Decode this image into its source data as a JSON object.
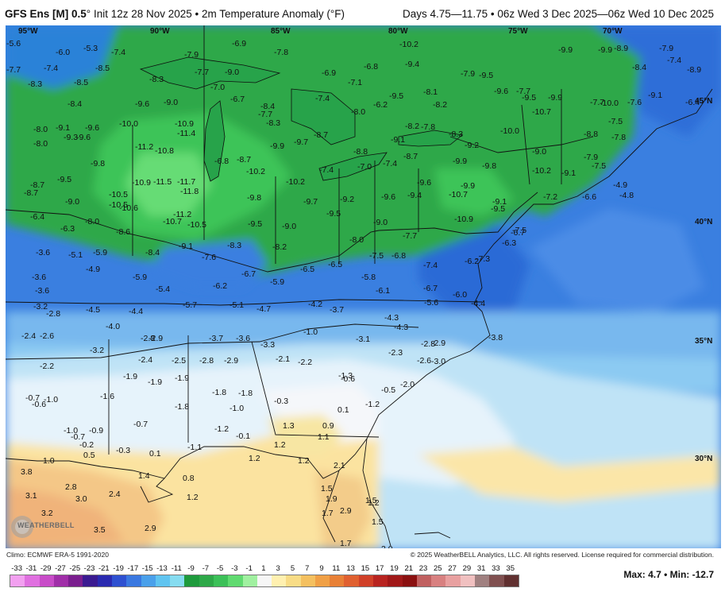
{
  "header": {
    "model": "GFS Ens [M] 0.5",
    "init": "Init 12z 28 Nov 2025",
    "variable": "2m Temperature Anomaly (°F)",
    "valid": "Days 4.75—11.75 • 06z Wed 3 Dec 2025—06z Wed 10 Dec 2025"
  },
  "footer": {
    "clim": "Climo: ECMWF ERA-5 1991-2020",
    "copyright": "© 2025 WeatherBELL Analytics, LLC. All rights reserved. License required for commercial distribution.",
    "max_label": "Max: 4.7 • Min: -12.7"
  },
  "logo_text": "WEATHERBELL",
  "colorbar": {
    "ticks": [
      "-33",
      "-31",
      "-29",
      "-27",
      "-25",
      "-23",
      "-21",
      "-19",
      "-17",
      "-15",
      "-13",
      "-11",
      "-9",
      "-7",
      "-5",
      "-3",
      "-1",
      "1",
      "3",
      "5",
      "7",
      "9",
      "11",
      "13",
      "15",
      "17",
      "19",
      "21",
      "23",
      "25",
      "27",
      "29",
      "31",
      "33",
      "35"
    ],
    "colors": [
      "#f2a0f0",
      "#e070e0",
      "#c84cc8",
      "#a02ea8",
      "#7a1e8e",
      "#3a1a90",
      "#2a2ab0",
      "#2e50d0",
      "#3a78e0",
      "#4aa0ea",
      "#60c4f0",
      "#86dcf0",
      "#1e9a3c",
      "#2ea848",
      "#3cc058",
      "#60da70",
      "#a0f0a0",
      "#f6f6f6",
      "#fff0b0",
      "#f8dc86",
      "#f4c060",
      "#f0a046",
      "#e88036",
      "#e06030",
      "#d04028",
      "#b82420",
      "#a01818",
      "#8a1010",
      "#c06060",
      "#d88080",
      "#e8a0a0",
      "#f0c0c0",
      "#a08080",
      "#805050",
      "#603030"
    ]
  },
  "lon_labels": [
    "95°W",
    "90°W",
    "85°W",
    "80°W",
    "75°W",
    "70°W"
  ],
  "lat_labels": [
    "45°N",
    "40°N",
    "35°N",
    "30°N"
  ],
  "anomaly_values": [
    {
      "v": "-5.6"
    },
    {
      "v": "-6.0"
    },
    {
      "v": "-5.3"
    },
    {
      "v": "-7.4"
    },
    {
      "v": "-6.9"
    },
    {
      "v": "-7.9"
    },
    {
      "v": "-7.8"
    },
    {
      "v": "-10.2"
    },
    {
      "v": "-9.9"
    },
    {
      "v": "-9.9"
    },
    {
      "v": "-8.9"
    },
    {
      "v": "-7.9"
    },
    {
      "v": "-7.4"
    },
    {
      "v": "-7.7"
    },
    {
      "v": "-7.4"
    },
    {
      "v": "-8.5"
    },
    {
      "v": "-8.3"
    },
    {
      "v": "-7.7"
    },
    {
      "v": "-9.0"
    },
    {
      "v": "-6.8"
    },
    {
      "v": "-6.9"
    },
    {
      "v": "-9.4"
    },
    {
      "v": "-7.9"
    },
    {
      "v": "-9.5"
    },
    {
      "v": "-8.4"
    },
    {
      "v": "-8.9"
    },
    {
      "v": "-8.3"
    },
    {
      "v": "-8.5"
    },
    {
      "v": "-7.0"
    },
    {
      "v": "-7.1"
    },
    {
      "v": "-9.5"
    },
    {
      "v": "-9.6"
    },
    {
      "v": "-7.7"
    },
    {
      "v": "-6.4"
    },
    {
      "v": "-8.4"
    },
    {
      "v": "-9.6"
    },
    {
      "v": "-9.0"
    },
    {
      "v": "-6.7"
    },
    {
      "v": "-8.4"
    },
    {
      "v": "-7.4"
    },
    {
      "v": "-8.1"
    },
    {
      "v": "-8.2"
    },
    {
      "v": "-6.2"
    },
    {
      "v": "-9.5"
    },
    {
      "v": "-9.9"
    },
    {
      "v": "-7.7"
    },
    {
      "v": "-7.6"
    },
    {
      "v": "-10.0"
    },
    {
      "v": "-10.9"
    },
    {
      "v": "-7.7"
    },
    {
      "v": "-8.3"
    },
    {
      "v": "-8.0"
    },
    {
      "v": "-10.7"
    },
    {
      "v": "-10.0"
    },
    {
      "v": "-9.1"
    },
    {
      "v": "-7.5"
    },
    {
      "v": "-8.0"
    },
    {
      "v": "-9.1"
    },
    {
      "v": "-9.6"
    },
    {
      "v": "-11.4"
    },
    {
      "v": "-8.7"
    },
    {
      "v": "-7.8"
    },
    {
      "v": "-8.2"
    },
    {
      "v": "-8.3"
    },
    {
      "v": "-8.8"
    },
    {
      "v": "-7.8"
    },
    {
      "v": "-8.0"
    },
    {
      "v": "-9.3"
    },
    {
      "v": "-9.6"
    },
    {
      "v": "-9.9"
    },
    {
      "v": "-9.7"
    },
    {
      "v": "-9.1"
    },
    {
      "v": "-9.2"
    },
    {
      "v": "-11.2"
    },
    {
      "v": "-10.8"
    },
    {
      "v": "-6.8"
    },
    {
      "v": "-8.7"
    },
    {
      "v": "-8.8"
    },
    {
      "v": "-8.7"
    },
    {
      "v": "-9.9"
    },
    {
      "v": "-10.0"
    },
    {
      "v": "-9.0"
    },
    {
      "v": "-7.9"
    },
    {
      "v": "-9.8"
    },
    {
      "v": "-10.2"
    },
    {
      "v": "-7.4"
    },
    {
      "v": "-7.0"
    },
    {
      "v": "-7.4"
    },
    {
      "v": "-9.8"
    },
    {
      "v": "-10.2"
    },
    {
      "v": "-9.1"
    },
    {
      "v": "-7.5"
    },
    {
      "v": "-8.7"
    },
    {
      "v": "-9.5"
    },
    {
      "v": "-10.9"
    },
    {
      "v": "-11.5"
    },
    {
      "v": "-11.7"
    },
    {
      "v": "-10.2"
    },
    {
      "v": "-9.6"
    },
    {
      "v": "-9.9"
    },
    {
      "v": "-8.7"
    },
    {
      "v": "-11.8"
    },
    {
      "v": "-10.5"
    },
    {
      "v": "-9.8"
    },
    {
      "v": "-9.2"
    },
    {
      "v": "-9.6"
    },
    {
      "v": "-9.4"
    },
    {
      "v": "-10.7"
    },
    {
      "v": "-7.2"
    },
    {
      "v": "-6.6"
    },
    {
      "v": "-4.9"
    },
    {
      "v": "-4.8"
    },
    {
      "v": "-9.0"
    },
    {
      "v": "-10.5"
    },
    {
      "v": "-10.6"
    },
    {
      "v": "-9.7"
    },
    {
      "v": "-9.5"
    },
    {
      "v": "-10.9"
    },
    {
      "v": "-9.1"
    },
    {
      "v": "-6.4"
    },
    {
      "v": "-8.0"
    },
    {
      "v": "-11.2"
    },
    {
      "v": "-10.7"
    },
    {
      "v": "-10.5"
    },
    {
      "v": "-9.5"
    },
    {
      "v": "-9.0"
    },
    {
      "v": "-9.0"
    },
    {
      "v": "-9.5"
    },
    {
      "v": "-6.3"
    },
    {
      "v": "-8.6"
    },
    {
      "v": "-7.7"
    },
    {
      "v": "-7.5"
    },
    {
      "v": "-6.7"
    },
    {
      "v": "-3.6"
    },
    {
      "v": "-5.1"
    },
    {
      "v": "-5.9"
    },
    {
      "v": "-8.4"
    },
    {
      "v": "-9.1"
    },
    {
      "v": "-8.3"
    },
    {
      "v": "-8.2"
    },
    {
      "v": "-8.0"
    },
    {
      "v": "-7.5"
    },
    {
      "v": "-6.8"
    },
    {
      "v": "-6.3"
    },
    {
      "v": "-7.6"
    },
    {
      "v": "-6.5"
    },
    {
      "v": "-6.2"
    },
    {
      "v": "-7.3"
    },
    {
      "v": "-3.6"
    },
    {
      "v": "-4.9"
    },
    {
      "v": "-5.9"
    },
    {
      "v": "-6.7"
    },
    {
      "v": "-6.5"
    },
    {
      "v": "-7.4"
    },
    {
      "v": "-3.6"
    },
    {
      "v": "-5.4"
    },
    {
      "v": "-6.2"
    },
    {
      "v": "-5.9"
    },
    {
      "v": "-5.8"
    },
    {
      "v": "-6.1"
    },
    {
      "v": "-6.7"
    },
    {
      "v": "-6.0"
    },
    {
      "v": "-3.2"
    },
    {
      "v": "-5.7"
    },
    {
      "v": "-5.1"
    },
    {
      "v": "-4.7"
    },
    {
      "v": "-4.2"
    },
    {
      "v": "-3.7"
    },
    {
      "v": "-5.6"
    },
    {
      "v": "-4.4"
    },
    {
      "v": "-2.8"
    },
    {
      "v": "-4.5"
    },
    {
      "v": "-4.4"
    },
    {
      "v": "-4.3"
    },
    {
      "v": "-4.3"
    },
    {
      "v": "-2.4"
    },
    {
      "v": "-2.6"
    },
    {
      "v": "-4.0"
    },
    {
      "v": "-2.9"
    },
    {
      "v": "-1.0"
    },
    {
      "v": "-3.1"
    },
    {
      "v": "-3.8"
    },
    {
      "v": "-2.8"
    },
    {
      "v": "-3.7"
    },
    {
      "v": "-3.6"
    },
    {
      "v": "-3.3"
    },
    {
      "v": "-2.8"
    },
    {
      "v": "-2.9"
    },
    {
      "v": "-3.2"
    },
    {
      "v": "-2.3"
    },
    {
      "v": "-2.4"
    },
    {
      "v": "-2.5"
    },
    {
      "v": "-2.8"
    },
    {
      "v": "-2.9"
    },
    {
      "v": "-2.1"
    },
    {
      "v": "-2.2"
    },
    {
      "v": "-2.6"
    },
    {
      "v": "-3.0"
    },
    {
      "v": "-2.2"
    },
    {
      "v": "-1.9"
    },
    {
      "v": "-1.9"
    },
    {
      "v": "-1.9"
    },
    {
      "v": "-1.3"
    },
    {
      "v": "-0.6"
    },
    {
      "v": "-2.0"
    },
    {
      "v": "-0.7"
    },
    {
      "v": "-1.0"
    },
    {
      "v": "-1.6"
    },
    {
      "v": "-1.8"
    },
    {
      "v": "-1.8"
    },
    {
      "v": "-0.3"
    },
    {
      "v": "-0.5"
    },
    {
      "v": "-0.6"
    },
    {
      "v": "-1.8"
    },
    {
      "v": "-1.0"
    },
    {
      "v": "0.1"
    },
    {
      "v": "-1.2"
    },
    {
      "v": "-0.7"
    },
    {
      "v": "1.3"
    },
    {
      "v": "0.9"
    },
    {
      "v": "-1.0"
    },
    {
      "v": "-0.9"
    },
    {
      "v": "-1.2"
    },
    {
      "v": "-0.1"
    },
    {
      "v": "1.1"
    },
    {
      "v": "-0.7"
    },
    {
      "v": "-0.2"
    },
    {
      "v": "-1.1"
    },
    {
      "v": "-0.3"
    },
    {
      "v": "1.2"
    },
    {
      "v": "0.5"
    },
    {
      "v": "0.1"
    },
    {
      "v": "1.0"
    },
    {
      "v": "1.2"
    },
    {
      "v": "1.2"
    },
    {
      "v": "2.1"
    },
    {
      "v": "3.8"
    },
    {
      "v": "1.5"
    },
    {
      "v": "1.4"
    },
    {
      "v": "0.8"
    },
    {
      "v": "2.8"
    },
    {
      "v": "2.4"
    },
    {
      "v": "1.5"
    },
    {
      "v": "3.1"
    },
    {
      "v": "3.0"
    },
    {
      "v": "1.2"
    },
    {
      "v": "1.9"
    },
    {
      "v": "1.2"
    },
    {
      "v": "3.2"
    },
    {
      "v": "2.9"
    },
    {
      "v": "1.7"
    },
    {
      "v": "1.5"
    },
    {
      "v": "3.5"
    },
    {
      "v": "2.9"
    },
    {
      "v": "1.7"
    },
    {
      "v": "2.0"
    }
  ]
}
